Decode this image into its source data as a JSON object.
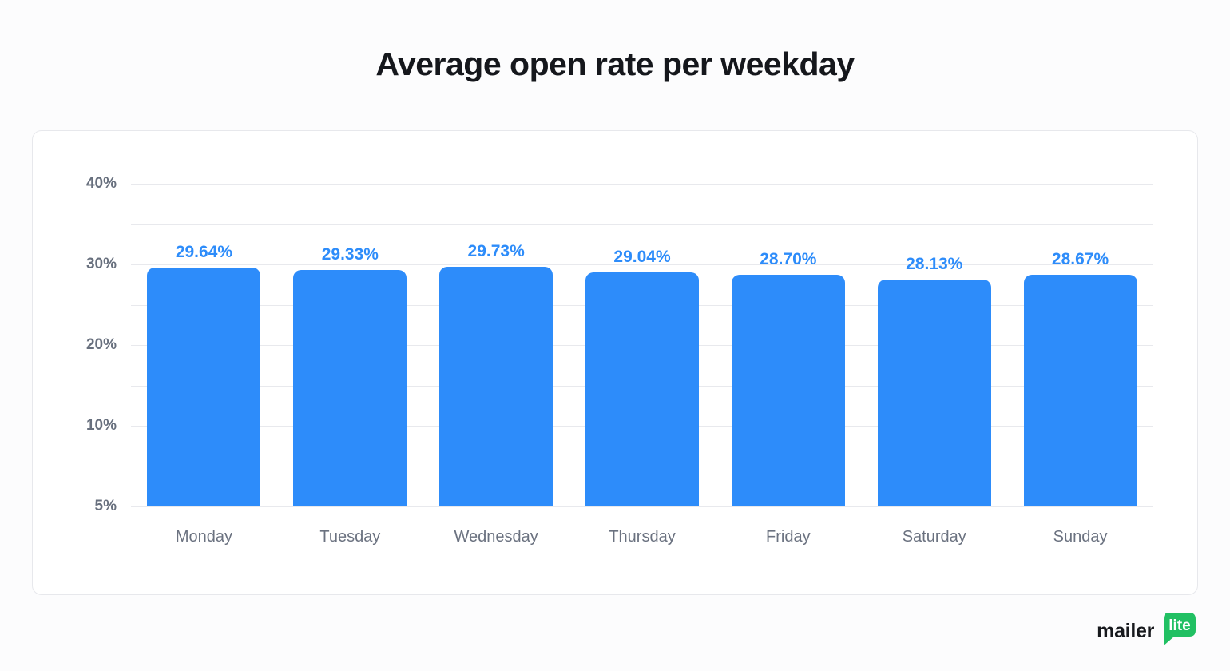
{
  "page": {
    "title": "Average open rate per weekday"
  },
  "chart_data": {
    "type": "bar",
    "title": "Average open rate per weekday",
    "categories": [
      "Monday",
      "Tuesday",
      "Wednesday",
      "Thursday",
      "Friday",
      "Saturday",
      "Sunday"
    ],
    "values": [
      29.64,
      29.33,
      29.73,
      29.04,
      28.7,
      28.13,
      28.67
    ],
    "value_labels": [
      "29.64%",
      "29.33%",
      "29.73%",
      "29.04%",
      "28.70%",
      "28.13%",
      "28.67%"
    ],
    "xlabel": "",
    "ylabel": "",
    "y_axis": {
      "tick_labels": [
        "40%",
        "30%",
        "20%",
        "10%",
        "5%"
      ],
      "tick_values": [
        40,
        30,
        20,
        10,
        5
      ],
      "ylim": [
        5,
        40
      ],
      "note": "labeled ticks evenly spaced with one unlabeled minor gridline between each pair"
    },
    "grid": true,
    "legend": "none",
    "colors": {
      "bar": "#2d8cfa",
      "value_label": "#2d8cfa",
      "gridline": "#e8e9ed",
      "axis_text": "#6b7280",
      "title_text": "#15171c"
    }
  },
  "logo": {
    "text": "mailer",
    "badge": "lite",
    "badge_color": "#21c063",
    "badge_text_color": "#ffffff"
  }
}
